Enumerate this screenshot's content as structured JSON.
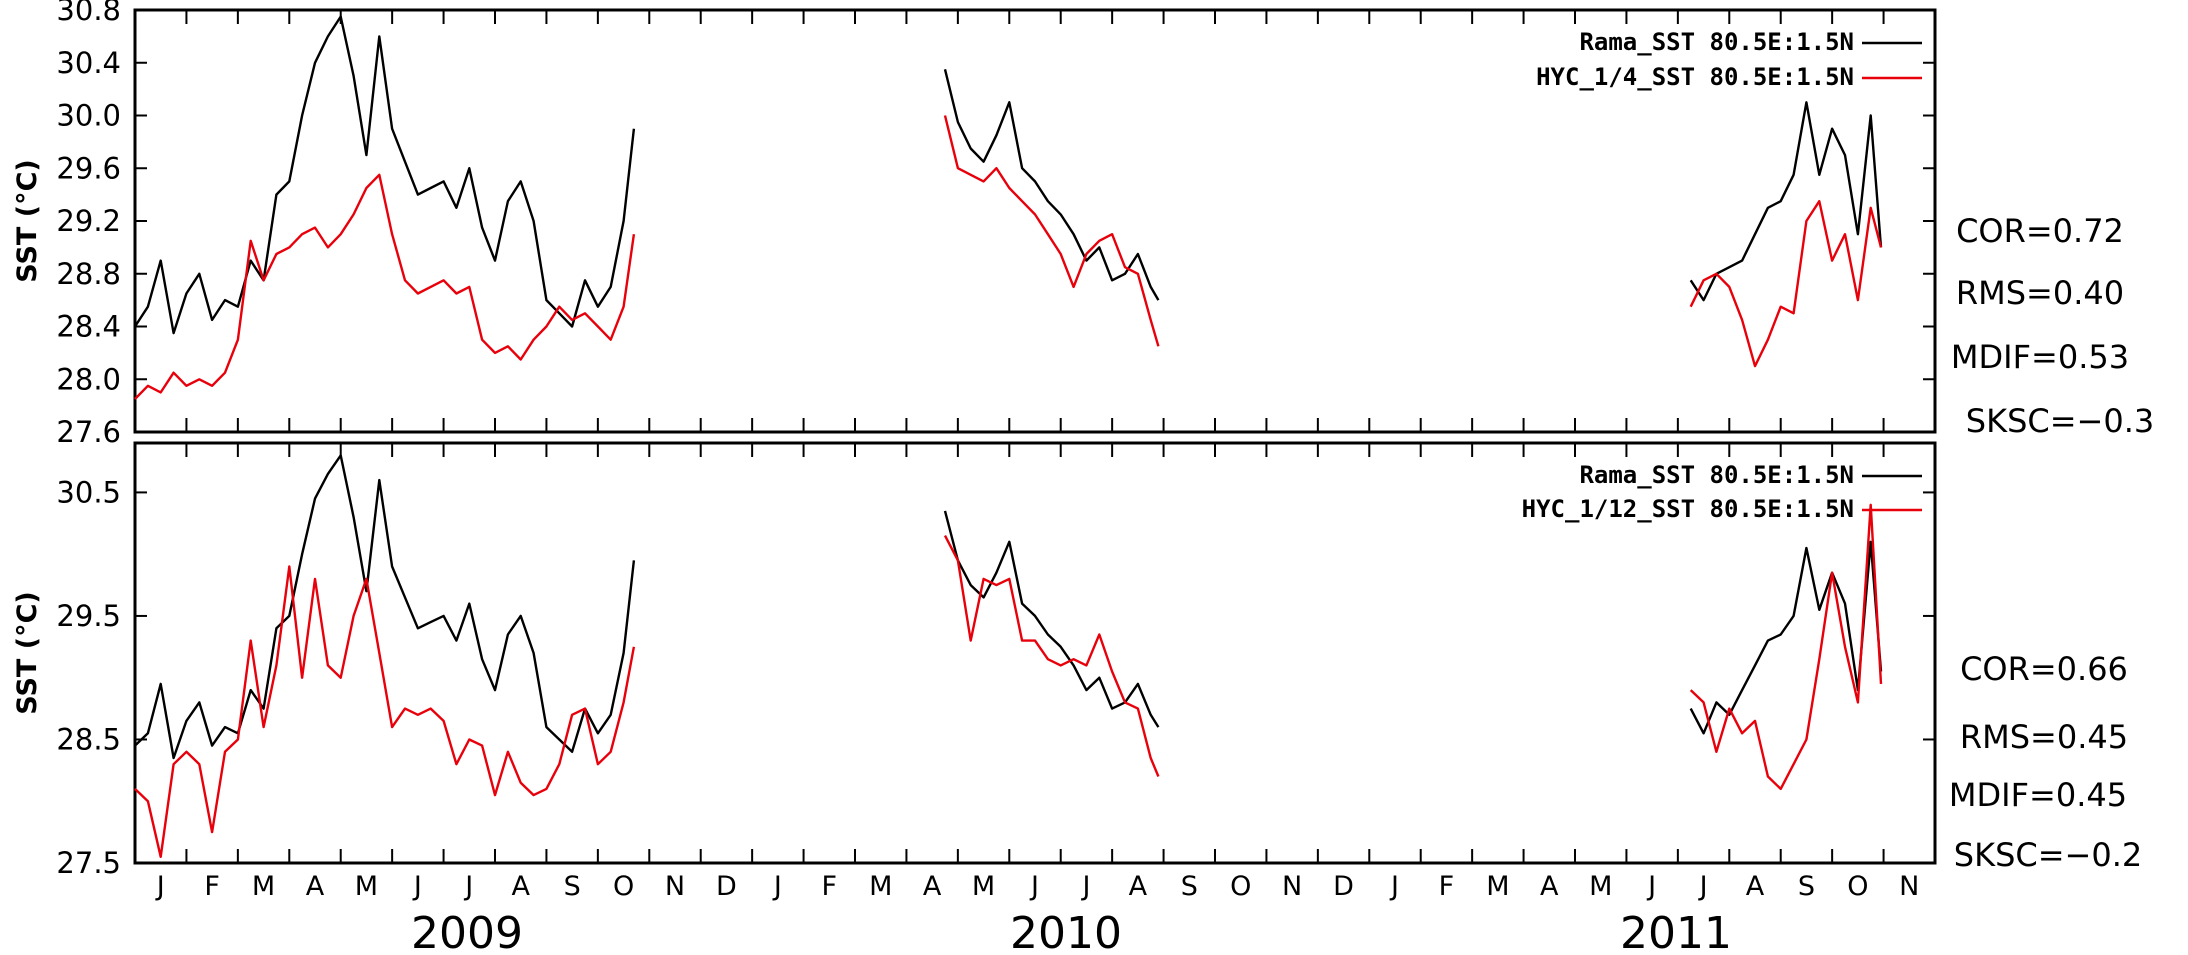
{
  "colors": {
    "obs": "#000000",
    "model": "#e8000b"
  },
  "years": [
    "2009",
    "2010",
    "2011"
  ],
  "months": [
    "J",
    "F",
    "M",
    "A",
    "M",
    "J",
    "J",
    "A",
    "S",
    "O",
    "N",
    "D",
    "J",
    "F",
    "M",
    "A",
    "M",
    "J",
    "J",
    "A",
    "S",
    "O",
    "N",
    "D",
    "J",
    "F",
    "M",
    "A",
    "M",
    "J",
    "J",
    "A",
    "S",
    "O",
    "N"
  ],
  "chart_data": [
    {
      "type": "line",
      "ylabel": "SST (°C)",
      "ylim": [
        27.6,
        30.8
      ],
      "yticks": [
        "27.6",
        "28.0",
        "28.4",
        "28.8",
        "29.2",
        "29.6",
        "30.0",
        "30.4",
        "30.8"
      ],
      "xlim": [
        "2009-01",
        "2011-11"
      ],
      "stats": [
        "COR=0.72",
        "RMS=0.40",
        "MDIF=0.53",
        "SKSC=−0.3"
      ],
      "series": [
        {
          "name": "Rama_SST 80.5E:1.5N",
          "color": "#000000",
          "segments": [
            {
              "x": [
                0.0,
                0.25,
                0.5,
                0.75,
                1.0,
                1.25,
                1.5,
                1.75,
                2.0,
                2.25,
                2.5,
                2.75,
                3.0,
                3.25,
                3.5,
                3.75,
                4.0,
                4.25,
                4.5,
                4.75,
                5.0,
                5.25,
                5.5,
                5.75,
                6.0,
                6.25,
                6.5,
                6.75,
                7.0,
                7.25,
                7.5,
                7.75,
                8.0,
                8.25,
                8.5,
                8.75,
                9.0,
                9.25,
                9.5,
                9.7
              ],
              "y": [
                28.4,
                28.55,
                28.9,
                28.35,
                28.65,
                28.8,
                28.45,
                28.6,
                28.55,
                28.9,
                28.75,
                29.4,
                29.5,
                30.0,
                30.4,
                30.6,
                30.75,
                30.3,
                29.7,
                30.6,
                29.9,
                29.65,
                29.4,
                29.45,
                29.5,
                29.3,
                29.6,
                29.15,
                28.9,
                29.35,
                29.5,
                29.2,
                28.6,
                28.5,
                28.4,
                28.75,
                28.55,
                28.7,
                29.2,
                29.9
              ]
            },
            {
              "x": [
                15.75,
                16.0,
                16.25,
                16.5,
                16.75,
                17.0,
                17.25,
                17.5,
                17.75,
                18.0,
                18.25,
                18.5,
                18.75,
                19.0,
                19.25,
                19.5,
                19.75,
                19.9
              ],
              "y": [
                30.35,
                29.95,
                29.75,
                29.65,
                29.85,
                30.1,
                29.6,
                29.5,
                29.35,
                29.25,
                29.1,
                28.9,
                29.0,
                28.75,
                28.8,
                28.95,
                28.7,
                28.6
              ]
            },
            {
              "x": [
                30.25,
                30.5,
                30.75,
                31.0,
                31.25,
                31.5,
                31.75,
                32.0,
                32.25,
                32.5,
                32.75,
                33.0,
                33.25,
                33.5,
                33.75,
                33.95
              ],
              "y": [
                28.75,
                28.6,
                28.8,
                28.85,
                28.9,
                29.1,
                29.3,
                29.35,
                29.55,
                30.1,
                29.55,
                29.9,
                29.7,
                29.1,
                30.0,
                29.0
              ]
            }
          ]
        },
        {
          "name": "HYC_1/4_SST 80.5E:1.5N",
          "color": "#e8000b",
          "segments": [
            {
              "x": [
                0.0,
                0.25,
                0.5,
                0.75,
                1.0,
                1.25,
                1.5,
                1.75,
                2.0,
                2.25,
                2.5,
                2.75,
                3.0,
                3.25,
                3.5,
                3.75,
                4.0,
                4.25,
                4.5,
                4.75,
                5.0,
                5.25,
                5.5,
                5.75,
                6.0,
                6.25,
                6.5,
                6.75,
                7.0,
                7.25,
                7.5,
                7.75,
                8.0,
                8.25,
                8.5,
                8.75,
                9.0,
                9.25,
                9.5,
                9.7
              ],
              "y": [
                27.85,
                27.95,
                27.9,
                28.05,
                27.95,
                28.0,
                27.95,
                28.05,
                28.3,
                29.05,
                28.75,
                28.95,
                29.0,
                29.1,
                29.15,
                29.0,
                29.1,
                29.25,
                29.45,
                29.55,
                29.1,
                28.75,
                28.65,
                28.7,
                28.75,
                28.65,
                28.7,
                28.3,
                28.2,
                28.25,
                28.15,
                28.3,
                28.4,
                28.55,
                28.45,
                28.5,
                28.4,
                28.3,
                28.55,
                29.1
              ]
            },
            {
              "x": [
                15.75,
                16.0,
                16.25,
                16.5,
                16.75,
                17.0,
                17.25,
                17.5,
                17.75,
                18.0,
                18.25,
                18.5,
                18.75,
                19.0,
                19.25,
                19.5,
                19.75,
                19.9
              ],
              "y": [
                30.0,
                29.6,
                29.55,
                29.5,
                29.6,
                29.45,
                29.35,
                29.25,
                29.1,
                28.95,
                28.7,
                28.95,
                29.05,
                29.1,
                28.85,
                28.8,
                28.45,
                28.25
              ]
            },
            {
              "x": [
                30.25,
                30.5,
                30.75,
                31.0,
                31.25,
                31.5,
                31.75,
                32.0,
                32.25,
                32.5,
                32.75,
                33.0,
                33.25,
                33.5,
                33.75,
                33.95
              ],
              "y": [
                28.55,
                28.75,
                28.8,
                28.7,
                28.45,
                28.1,
                28.3,
                28.55,
                28.5,
                29.2,
                29.35,
                28.9,
                29.1,
                28.6,
                29.3,
                29.0
              ]
            }
          ]
        }
      ]
    },
    {
      "type": "line",
      "ylabel": "SST (°C)",
      "ylim": [
        27.5,
        30.9
      ],
      "yticks": [
        "27.5",
        "28.5",
        "29.5",
        "30.5"
      ],
      "xlim": [
        "2009-01",
        "2011-11"
      ],
      "stats": [
        "COR=0.66",
        "RMS=0.45",
        "MDIF=0.45",
        "SKSC=−0.2"
      ],
      "series": [
        {
          "name": "Rama_SST 80.5E:1.5N",
          "color": "#000000",
          "segments": [
            {
              "x": [
                0.0,
                0.25,
                0.5,
                0.75,
                1.0,
                1.25,
                1.5,
                1.75,
                2.0,
                2.25,
                2.5,
                2.75,
                3.0,
                3.25,
                3.5,
                3.75,
                4.0,
                4.25,
                4.5,
                4.75,
                5.0,
                5.25,
                5.5,
                5.75,
                6.0,
                6.25,
                6.5,
                6.75,
                7.0,
                7.25,
                7.5,
                7.75,
                8.0,
                8.25,
                8.5,
                8.75,
                9.0,
                9.25,
                9.5,
                9.7
              ],
              "y": [
                28.45,
                28.55,
                28.95,
                28.35,
                28.65,
                28.8,
                28.45,
                28.6,
                28.55,
                28.9,
                28.75,
                29.4,
                29.5,
                30.0,
                30.45,
                30.65,
                30.8,
                30.3,
                29.7,
                30.6,
                29.9,
                29.65,
                29.4,
                29.45,
                29.5,
                29.3,
                29.6,
                29.15,
                28.9,
                29.35,
                29.5,
                29.2,
                28.6,
                28.5,
                28.4,
                28.75,
                28.55,
                28.7,
                29.2,
                29.95
              ]
            },
            {
              "x": [
                15.75,
                16.0,
                16.25,
                16.5,
                16.75,
                17.0,
                17.25,
                17.5,
                17.75,
                18.0,
                18.25,
                18.5,
                18.75,
                19.0,
                19.25,
                19.5,
                19.75,
                19.9
              ],
              "y": [
                30.35,
                29.95,
                29.75,
                29.65,
                29.85,
                30.1,
                29.6,
                29.5,
                29.35,
                29.25,
                29.1,
                28.9,
                29.0,
                28.75,
                28.8,
                28.95,
                28.7,
                28.6
              ]
            },
            {
              "x": [
                30.25,
                30.5,
                30.75,
                31.0,
                31.25,
                31.5,
                31.75,
                32.0,
                32.25,
                32.5,
                32.75,
                33.0,
                33.25,
                33.5,
                33.75,
                33.95
              ],
              "y": [
                28.75,
                28.55,
                28.8,
                28.7,
                28.9,
                29.1,
                29.3,
                29.35,
                29.5,
                30.05,
                29.55,
                29.85,
                29.6,
                28.9,
                30.1,
                29.05
              ]
            }
          ]
        },
        {
          "name": "HYC_1/12_SST 80.5E:1.5N",
          "color": "#e8000b",
          "segments": [
            {
              "x": [
                0.0,
                0.25,
                0.5,
                0.75,
                1.0,
                1.25,
                1.5,
                1.75,
                2.0,
                2.25,
                2.5,
                2.75,
                3.0,
                3.25,
                3.5,
                3.75,
                4.0,
                4.25,
                4.5,
                4.75,
                5.0,
                5.25,
                5.5,
                5.75,
                6.0,
                6.25,
                6.5,
                6.75,
                7.0,
                7.25,
                7.5,
                7.75,
                8.0,
                8.25,
                8.5,
                8.75,
                9.0,
                9.25,
                9.5,
                9.7
              ],
              "y": [
                28.1,
                28.0,
                27.55,
                28.3,
                28.4,
                28.3,
                27.75,
                28.4,
                28.5,
                29.3,
                28.6,
                29.1,
                29.9,
                29.0,
                29.8,
                29.1,
                29.0,
                29.5,
                29.8,
                29.2,
                28.6,
                28.75,
                28.7,
                28.75,
                28.65,
                28.3,
                28.5,
                28.45,
                28.05,
                28.4,
                28.15,
                28.05,
                28.1,
                28.3,
                28.7,
                28.75,
                28.3,
                28.4,
                28.8,
                29.25
              ]
            },
            {
              "x": [
                15.75,
                16.0,
                16.25,
                16.5,
                16.75,
                17.0,
                17.25,
                17.5,
                17.75,
                18.0,
                18.25,
                18.5,
                18.75,
                19.0,
                19.25,
                19.5,
                19.75,
                19.9
              ],
              "y": [
                30.15,
                29.95,
                29.3,
                29.8,
                29.75,
                29.8,
                29.3,
                29.3,
                29.15,
                29.1,
                29.15,
                29.1,
                29.35,
                29.05,
                28.8,
                28.75,
                28.35,
                28.2
              ]
            },
            {
              "x": [
                30.25,
                30.5,
                30.75,
                31.0,
                31.25,
                31.5,
                31.75,
                32.0,
                32.25,
                32.5,
                32.75,
                33.0,
                33.25,
                33.5,
                33.75,
                33.95
              ],
              "y": [
                28.9,
                28.8,
                28.4,
                28.75,
                28.55,
                28.65,
                28.2,
                28.1,
                28.3,
                28.5,
                29.15,
                29.85,
                29.25,
                28.8,
                30.4,
                28.95
              ]
            }
          ]
        }
      ]
    }
  ]
}
